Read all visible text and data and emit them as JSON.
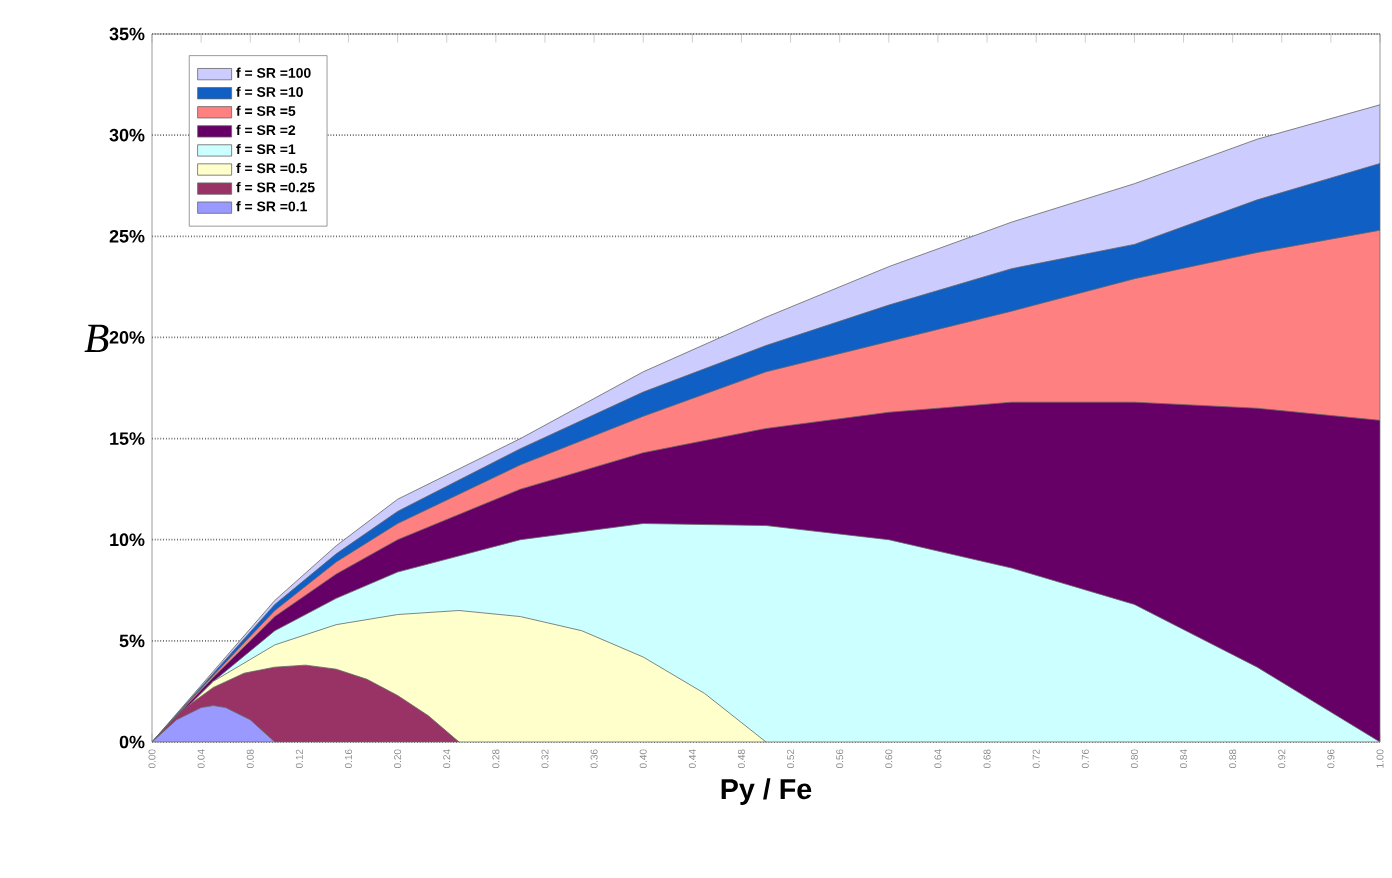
{
  "chart_data": {
    "type": "area",
    "xlabel": "Py / Fe",
    "ylabel": "B",
    "legend": "top left",
    "grid": "y",
    "xlim": [
      0,
      1
    ],
    "ylim": [
      0,
      35
    ],
    "xticks": [
      {
        "value": 0,
        "label": "0.00"
      },
      {
        "value": 0.04,
        "label": "0.04"
      },
      {
        "value": 0.08,
        "label": "0.08"
      },
      {
        "value": 0.12,
        "label": "0.12"
      },
      {
        "value": 0.16,
        "label": "0.16"
      },
      {
        "value": 0.2,
        "label": "0.20"
      },
      {
        "value": 0.24,
        "label": "0.24"
      },
      {
        "value": 0.28,
        "label": "0.28"
      },
      {
        "value": 0.32,
        "label": "0.32"
      },
      {
        "value": 0.36,
        "label": "0.36"
      },
      {
        "value": 0.4,
        "label": "0.40"
      },
      {
        "value": 0.44,
        "label": "0.44"
      },
      {
        "value": 0.48,
        "label": "0.48"
      },
      {
        "value": 0.52,
        "label": "0.52"
      },
      {
        "value": 0.56,
        "label": "0.56"
      },
      {
        "value": 0.6,
        "label": "0.60"
      },
      {
        "value": 0.64,
        "label": "0.64"
      },
      {
        "value": 0.68,
        "label": "0.68"
      },
      {
        "value": 0.72,
        "label": "0.72"
      },
      {
        "value": 0.76,
        "label": "0.76"
      },
      {
        "value": 0.8,
        "label": "0.80"
      },
      {
        "value": 0.84,
        "label": "0.84"
      },
      {
        "value": 0.88,
        "label": "0.88"
      },
      {
        "value": 0.92,
        "label": "0.92"
      },
      {
        "value": 0.96,
        "label": "0.96"
      },
      {
        "value": 1,
        "label": "1.00"
      }
    ],
    "yticks": [
      {
        "value": 0,
        "label": "0%"
      },
      {
        "value": 5,
        "label": "5%"
      },
      {
        "value": 10,
        "label": "10%"
      },
      {
        "value": 15,
        "label": "15%"
      },
      {
        "value": 20,
        "label": "20%"
      },
      {
        "value": 25,
        "label": "25%"
      },
      {
        "value": 30,
        "label": "30%"
      },
      {
        "value": 35,
        "label": "35%"
      }
    ],
    "series": [
      {
        "name": "f = SR =100",
        "color": "#ccccff",
        "x": [
          0,
          0.05,
          0.1,
          0.15,
          0.2,
          0.3,
          0.4,
          0.5,
          0.6,
          0.7,
          0.8,
          0.9,
          1
        ],
        "values": [
          0,
          3.5,
          7,
          9.7,
          12,
          15,
          18.3,
          21,
          23.5,
          25.7,
          27.6,
          29.8,
          31.5
        ]
      },
      {
        "name": "f = SR =10",
        "color": "#0f5fc4",
        "x": [
          0,
          0.05,
          0.1,
          0.15,
          0.2,
          0.3,
          0.4,
          0.5,
          0.6,
          0.7,
          0.8,
          0.9,
          1
        ],
        "values": [
          0,
          3.4,
          6.8,
          9.3,
          11.4,
          14.5,
          17.3,
          19.6,
          21.6,
          23.4,
          24.6,
          26.8,
          28.6
        ]
      },
      {
        "name": "f = SR =5",
        "color": "#ff8080",
        "x": [
          0,
          0.05,
          0.1,
          0.15,
          0.2,
          0.3,
          0.4,
          0.5,
          0.6,
          0.7,
          0.8,
          0.9,
          1
        ],
        "values": [
          0,
          3.3,
          6.5,
          8.9,
          10.8,
          13.7,
          16.1,
          18.3,
          19.8,
          21.3,
          22.9,
          24.2,
          25.3
        ]
      },
      {
        "name": "f = SR =2",
        "color": "#660066",
        "x": [
          0,
          0.05,
          0.1,
          0.15,
          0.2,
          0.3,
          0.4,
          0.5,
          0.6,
          0.7,
          0.8,
          0.9,
          1
        ],
        "values": [
          0,
          3.2,
          6.2,
          8.3,
          10,
          12.5,
          14.3,
          15.5,
          16.3,
          16.8,
          16.8,
          16.5,
          15.9
        ]
      },
      {
        "name": "f = SR =1",
        "color": "#ccffff",
        "x": [
          0,
          0.05,
          0.1,
          0.15,
          0.2,
          0.3,
          0.4,
          0.5,
          0.6,
          0.7,
          0.8,
          0.9,
          1
        ],
        "values": [
          0,
          3,
          5.5,
          7.1,
          8.4,
          10,
          10.8,
          10.7,
          10,
          8.6,
          6.8,
          3.7,
          0
        ]
      },
      {
        "name": "f = SR =0.5",
        "color": "#ffffcc",
        "x": [
          0,
          0.05,
          0.1,
          0.15,
          0.2,
          0.25,
          0.3,
          0.35,
          0.4,
          0.45,
          0.5
        ],
        "values": [
          0,
          3,
          4.8,
          5.8,
          6.3,
          6.5,
          6.2,
          5.5,
          4.2,
          2.4,
          0
        ]
      },
      {
        "name": "f = SR =0.25",
        "color": "#993366",
        "x": [
          0,
          0.025,
          0.05,
          0.075,
          0.1,
          0.125,
          0.15,
          0.175,
          0.2,
          0.225,
          0.25
        ],
        "values": [
          0,
          1.6,
          2.7,
          3.4,
          3.7,
          3.8,
          3.6,
          3.1,
          2.3,
          1.3,
          0
        ]
      },
      {
        "name": "f = SR =0.1",
        "color": "#9999ff",
        "x": [
          0,
          0.02,
          0.04,
          0.05,
          0.06,
          0.08,
          0.1
        ],
        "values": [
          0,
          1.1,
          1.7,
          1.8,
          1.7,
          1.1,
          0
        ]
      }
    ]
  }
}
